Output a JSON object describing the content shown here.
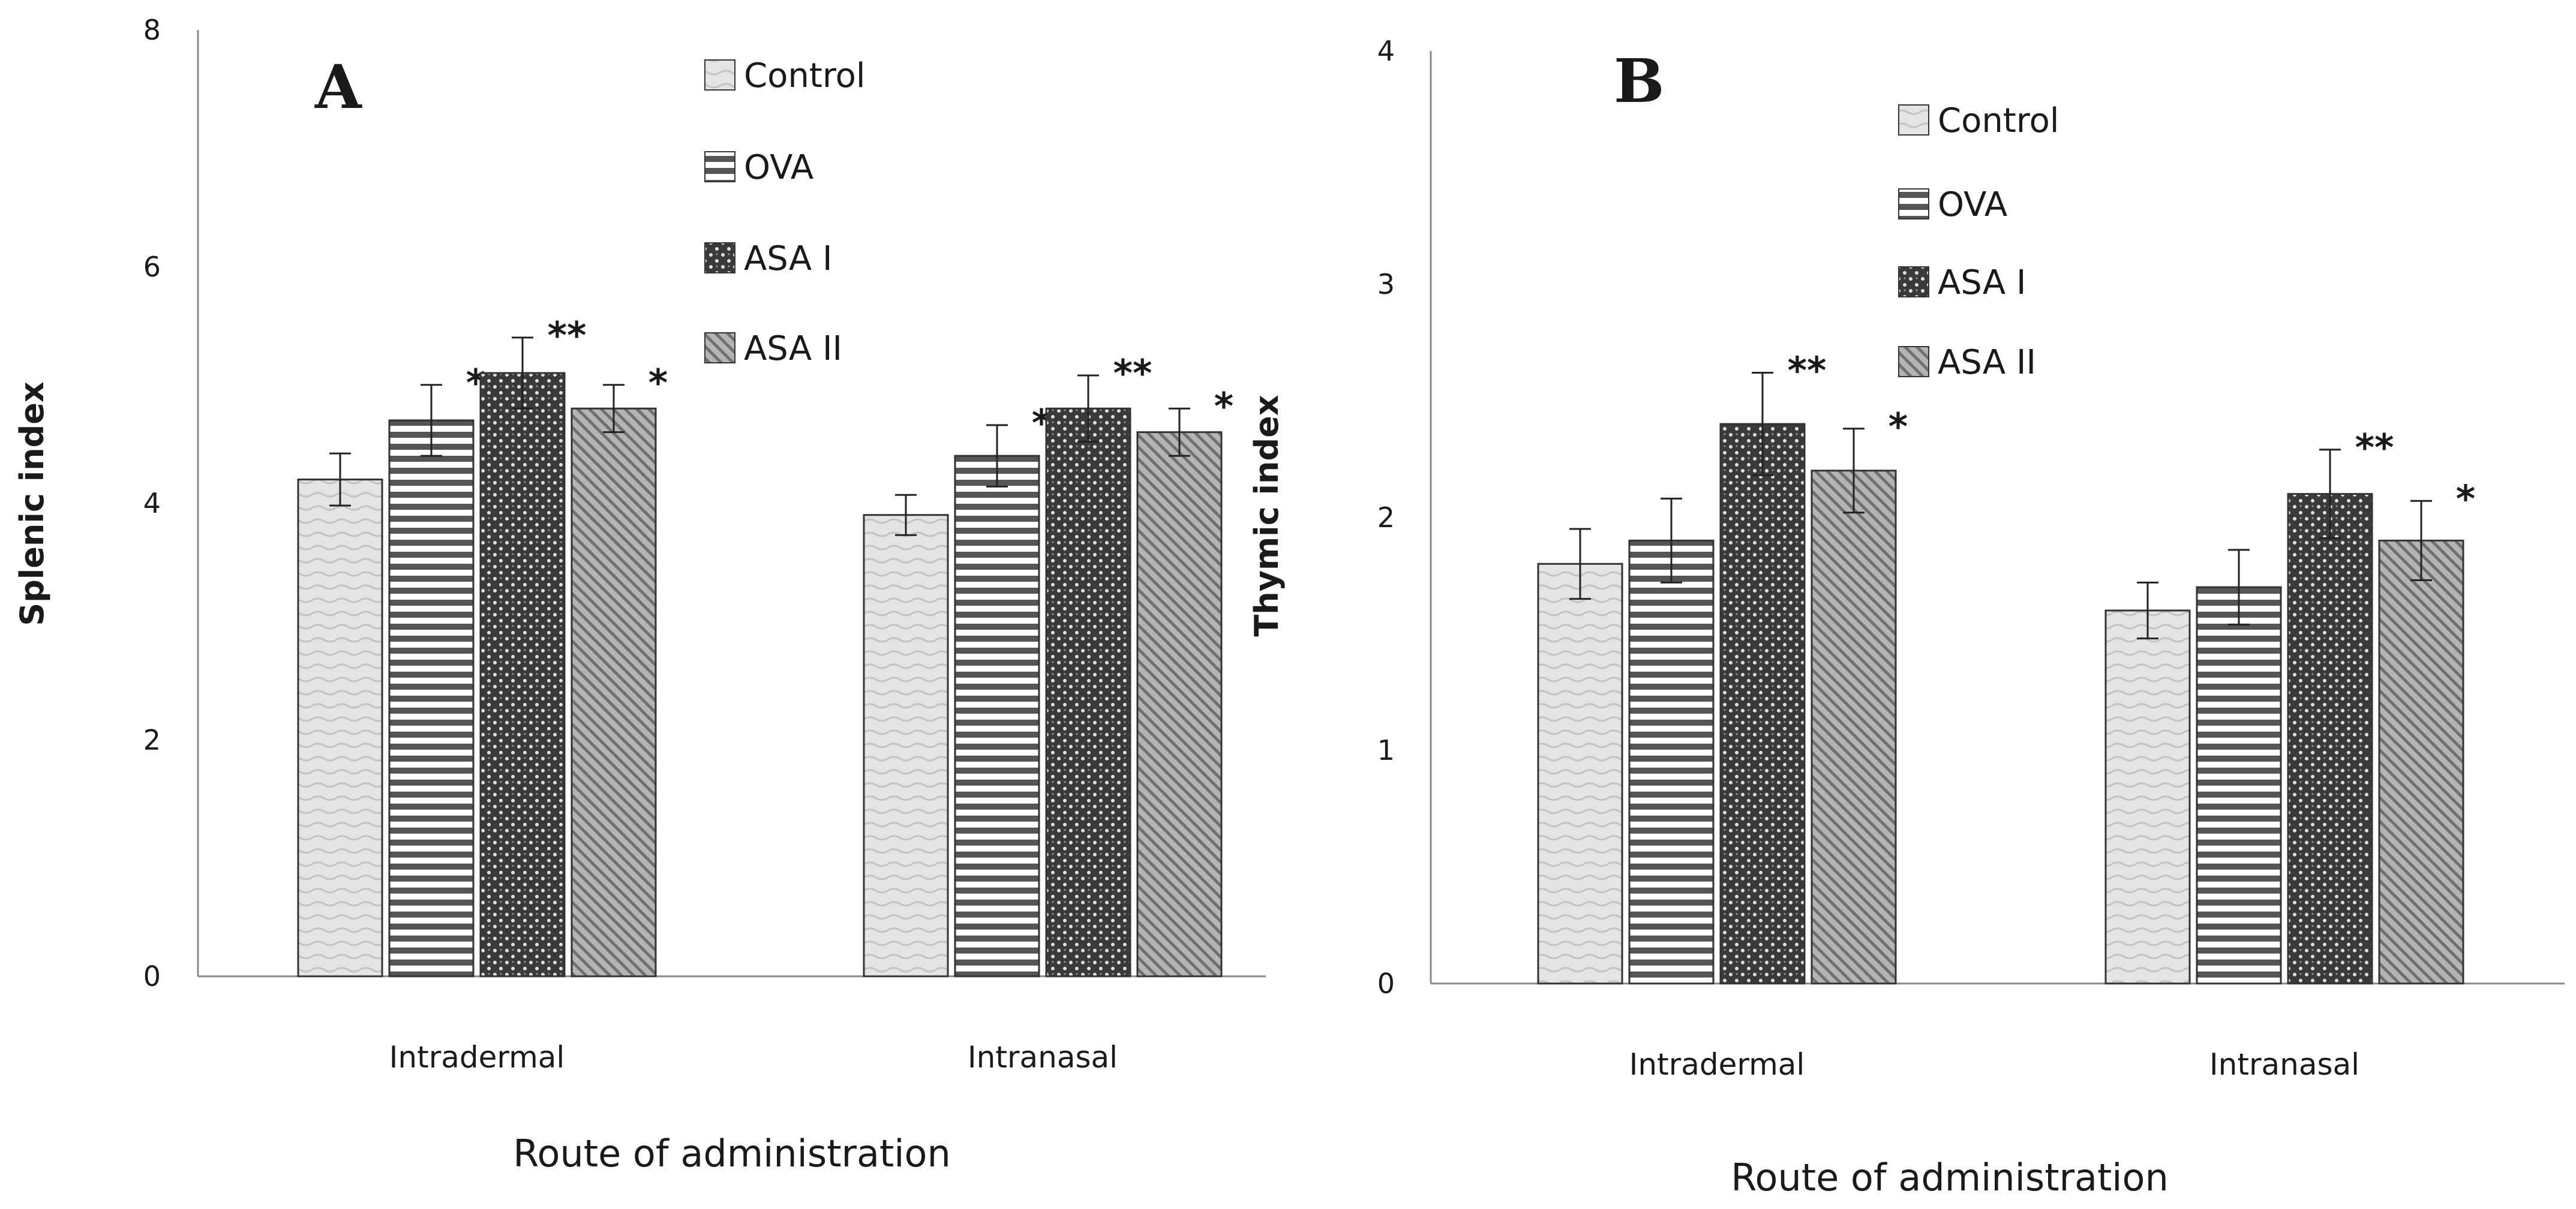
{
  "chart_data": [
    {
      "type": "bar",
      "panel_label": "A",
      "categories": [
        "Intradermal",
        "Intranasal"
      ],
      "series": [
        {
          "name": "Control",
          "values": [
            4.2,
            3.9
          ],
          "errors": [
            0.22,
            0.17
          ],
          "sig": [
            "",
            ""
          ]
        },
        {
          "name": "OVA",
          "values": [
            4.7,
            4.4
          ],
          "errors": [
            0.3,
            0.26
          ],
          "sig": [
            "*",
            "*"
          ]
        },
        {
          "name": "ASA I",
          "values": [
            5.1,
            4.8
          ],
          "errors": [
            0.3,
            0.28
          ],
          "sig": [
            "**",
            "**"
          ]
        },
        {
          "name": "ASA II",
          "values": [
            4.8,
            4.6
          ],
          "errors": [
            0.2,
            0.2
          ],
          "sig": [
            "*",
            "*"
          ]
        }
      ],
      "xlabel": "Route of administration",
      "ylabel": "Splenic index",
      "ylim": [
        0,
        8
      ],
      "yticks": [
        "0",
        "2",
        "4",
        "6",
        "8"
      ],
      "legend_position": "top-center",
      "grid": false
    },
    {
      "type": "bar",
      "panel_label": "B",
      "categories": [
        "Intradermal",
        "Intranasal"
      ],
      "series": [
        {
          "name": "Control",
          "values": [
            1.8,
            1.6
          ],
          "errors": [
            0.15,
            0.12
          ],
          "sig": [
            "",
            ""
          ]
        },
        {
          "name": "OVA",
          "values": [
            1.9,
            1.7
          ],
          "errors": [
            0.18,
            0.16
          ],
          "sig": [
            "",
            ""
          ]
        },
        {
          "name": "ASA I",
          "values": [
            2.4,
            2.1
          ],
          "errors": [
            0.22,
            0.19
          ],
          "sig": [
            "**",
            "**"
          ]
        },
        {
          "name": "ASA II",
          "values": [
            2.2,
            1.9
          ],
          "errors": [
            0.18,
            0.17
          ],
          "sig": [
            "*",
            "*"
          ]
        }
      ],
      "xlabel": "Route of administration",
      "ylabel": "Thymic index",
      "ylim": [
        0,
        4
      ],
      "yticks": [
        "0",
        "1",
        "2",
        "3",
        "4"
      ],
      "legend_position": "top-center",
      "grid": false
    }
  ]
}
